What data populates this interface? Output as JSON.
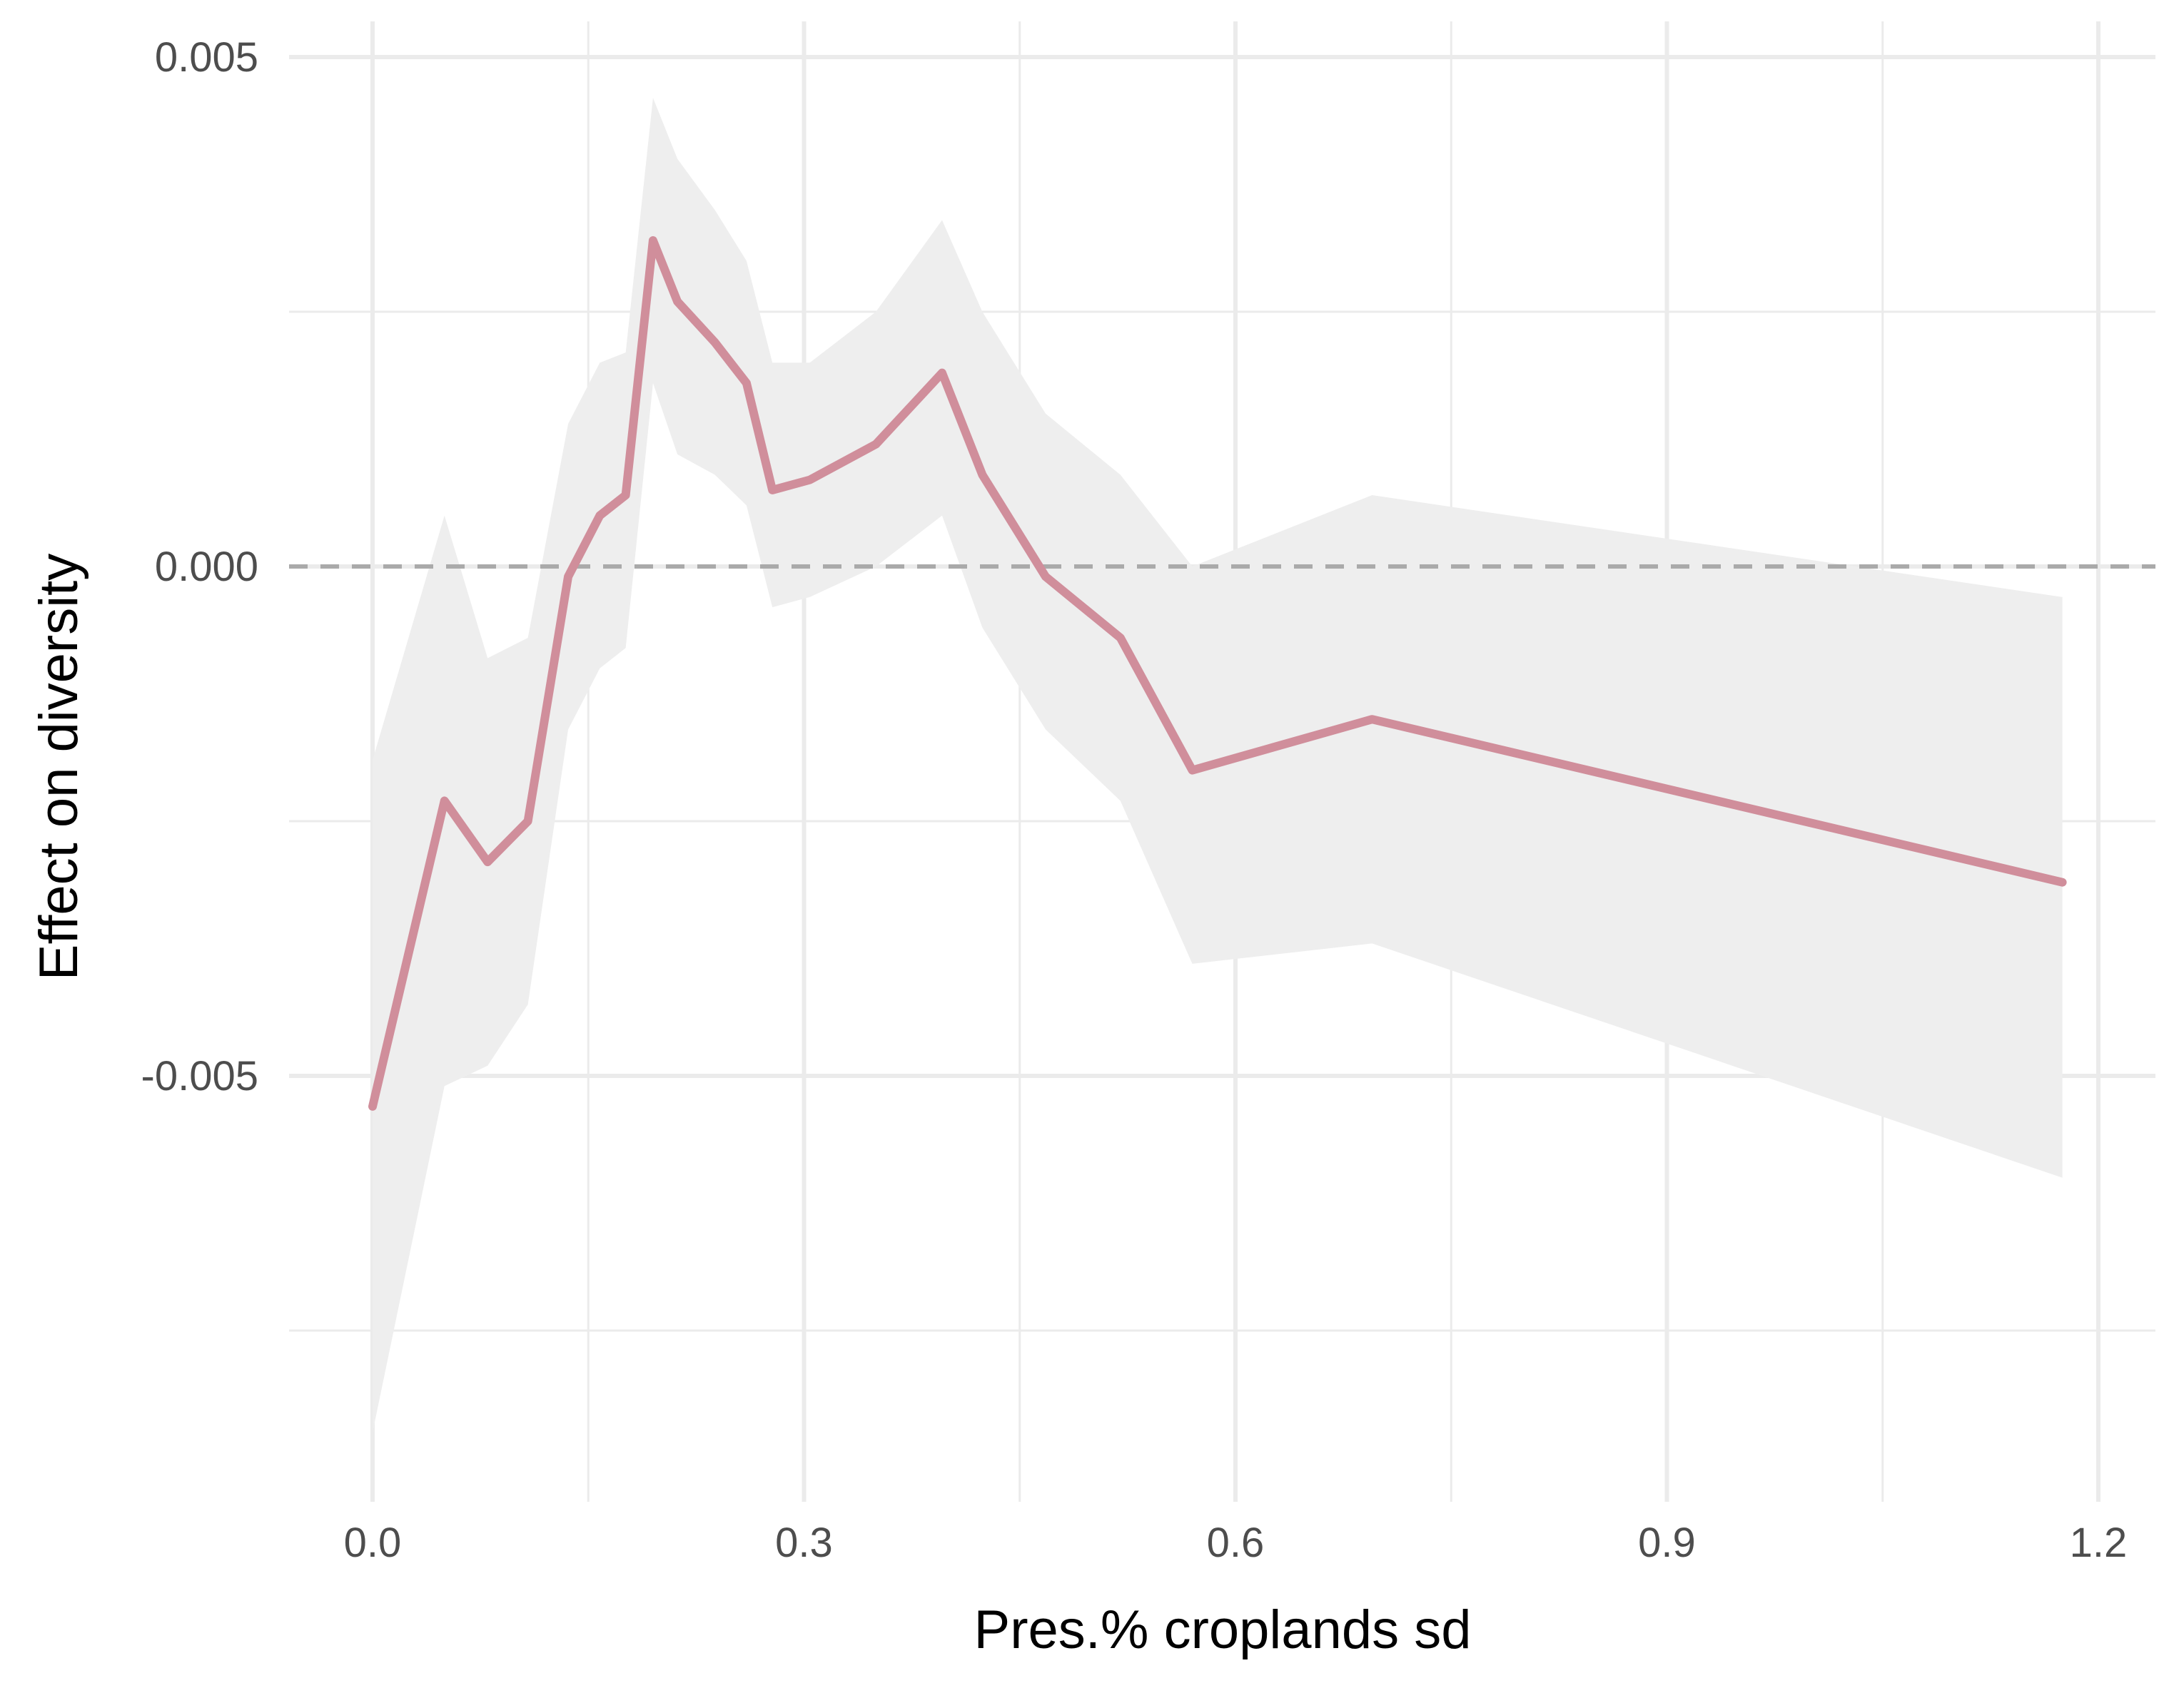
{
  "chart_data": {
    "type": "line",
    "xlabel": "Pres.% croplands sd",
    "ylabel": "Effect on diversity",
    "xlim": [
      -0.06,
      1.23
    ],
    "ylim": [
      -0.0092,
      0.005
    ],
    "x_ticks": [
      0.0,
      0.3,
      0.6,
      0.9,
      1.2
    ],
    "x_tick_labels": [
      "0.0",
      "0.3",
      "0.6",
      "0.9",
      "1.2"
    ],
    "y_ticks": [
      -0.005,
      0.0,
      0.005
    ],
    "y_tick_labels": [
      "-0.005",
      "0.000",
      "0.005"
    ],
    "reference_line": {
      "y": 0.0,
      "style": "dashed"
    },
    "grid": true,
    "colors": {
      "line": "#d08e9b",
      "band": "#eeeeee",
      "grid": "#ebebeb",
      "reference": "#aaaaaa"
    },
    "series": [
      {
        "x": [
          0.0,
          0.05,
          0.08,
          0.108,
          0.136,
          0.158,
          0.176,
          0.195,
          0.212,
          0.238,
          0.26,
          0.278,
          0.304,
          0.35,
          0.396,
          0.424,
          0.468,
          0.52,
          0.57,
          0.695,
          1.175
        ],
        "y": [
          -0.0053,
          -0.0023,
          -0.0029,
          -0.0025,
          -0.0001,
          0.0005,
          0.0007,
          0.0032,
          0.0026,
          0.0022,
          0.0018,
          0.00075,
          0.00085,
          0.0012,
          0.0019,
          0.0009,
          -0.0001,
          -0.0007,
          -0.002,
          -0.0015,
          -0.0031
        ],
        "lower": [
          -0.0085,
          -0.0051,
          -0.0049,
          -0.0043,
          -0.0016,
          -0.001,
          -0.0008,
          0.0018,
          0.0011,
          0.0009,
          0.0006,
          -0.0004,
          -0.0003,
          0.0,
          0.0005,
          -0.0006,
          -0.0016,
          -0.0023,
          -0.0039,
          -0.0037,
          -0.006
        ],
        "upper": [
          -0.0019,
          0.0005,
          -0.0009,
          -0.0007,
          0.0014,
          0.002,
          0.0021,
          0.0046,
          0.004,
          0.0035,
          0.003,
          0.002,
          0.002,
          0.0025,
          0.0034,
          0.0025,
          0.0015,
          0.0009,
          0.0,
          0.0007,
          -0.0003
        ]
      }
    ]
  }
}
